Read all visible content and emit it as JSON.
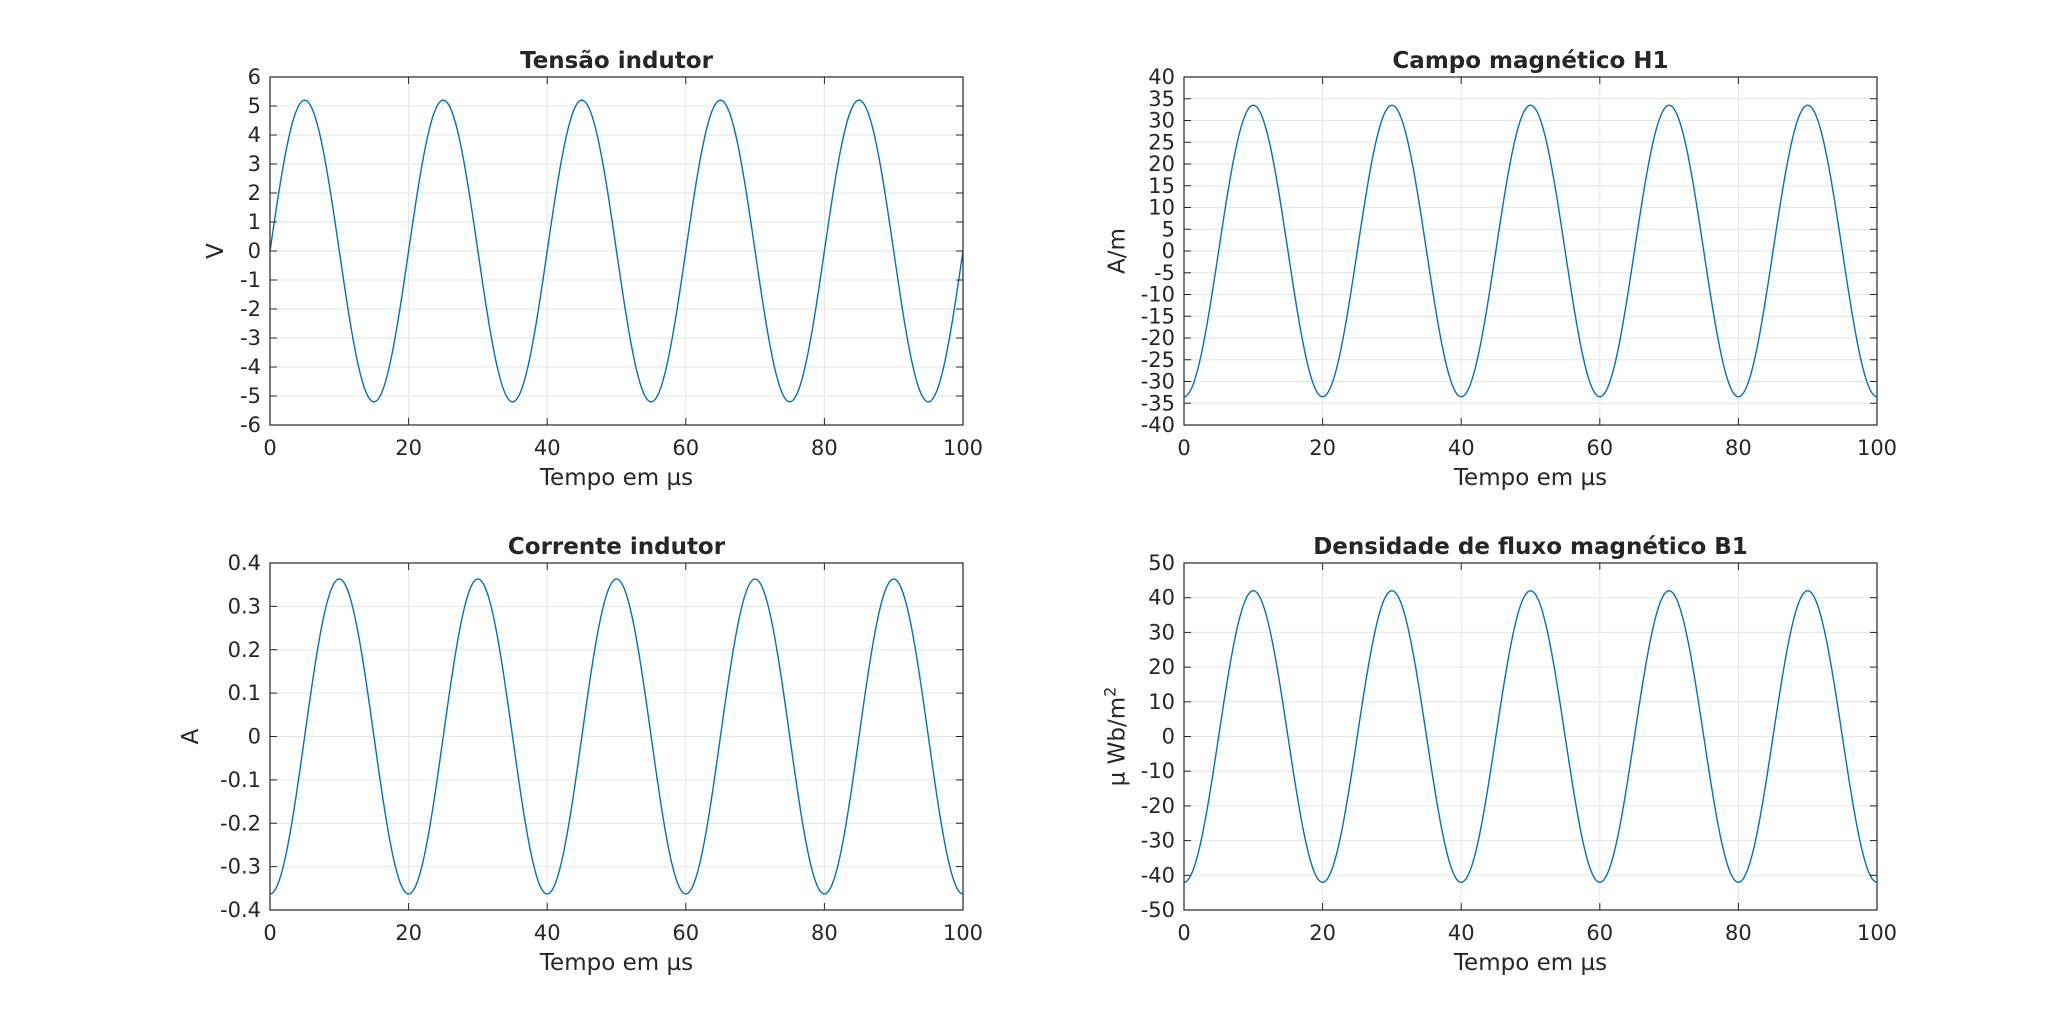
{
  "chart_data": [
    {
      "id": "tensao",
      "type": "line",
      "title": "Tensão indutor",
      "xlabel": "Tempo em µs",
      "ylabel": "V",
      "xlim": [
        0,
        100
      ],
      "ylim": [
        -6,
        6
      ],
      "xticks": [
        0,
        20,
        40,
        60,
        80,
        100
      ],
      "yticks": [
        -6,
        -5,
        -4,
        -3,
        -2,
        -1,
        0,
        1,
        2,
        3,
        4,
        5,
        6
      ],
      "grid": true,
      "series": [
        {
          "function": "sine",
          "amplitude": 5.2,
          "period": 20,
          "phase_deg": 0,
          "color": "#0072bd"
        }
      ]
    },
    {
      "id": "campo",
      "type": "line",
      "title": "Campo magnético H1",
      "xlabel": "Tempo em µs",
      "ylabel": "A/m",
      "xlim": [
        0,
        100
      ],
      "ylim": [
        -40,
        40
      ],
      "xticks": [
        0,
        20,
        40,
        60,
        80,
        100
      ],
      "yticks": [
        -40,
        -35,
        -30,
        -25,
        -20,
        -15,
        -10,
        -5,
        0,
        5,
        10,
        15,
        20,
        25,
        30,
        35,
        40
      ],
      "grid": true,
      "series": [
        {
          "function": "sine",
          "amplitude": 33.5,
          "period": 20,
          "phase_deg": -90,
          "color": "#0072bd"
        }
      ]
    },
    {
      "id": "corrente",
      "type": "line",
      "title": "Corrente indutor",
      "xlabel": "Tempo em µs",
      "ylabel": "A",
      "xlim": [
        0,
        100
      ],
      "ylim": [
        -0.4,
        0.4
      ],
      "xticks": [
        0,
        20,
        40,
        60,
        80,
        100
      ],
      "yticks": [
        -0.4,
        -0.3,
        -0.2,
        -0.1,
        0,
        0.1,
        0.2,
        0.3,
        0.4
      ],
      "grid": true,
      "series": [
        {
          "function": "sine",
          "amplitude": 0.363,
          "period": 20,
          "phase_deg": -90,
          "color": "#0072bd"
        }
      ]
    },
    {
      "id": "densidade",
      "type": "line",
      "title": "Densidade de fluxo magnético B1",
      "xlabel": "Tempo em µs",
      "ylabel": "µ Wb/m",
      "ylabel_superscript": "2",
      "xlim": [
        0,
        100
      ],
      "ylim": [
        -50,
        50
      ],
      "xticks": [
        0,
        20,
        40,
        60,
        80,
        100
      ],
      "yticks": [
        -50,
        -40,
        -30,
        -20,
        -10,
        0,
        10,
        20,
        30,
        40,
        50
      ],
      "grid": true,
      "series": [
        {
          "function": "sine",
          "amplitude": 42,
          "period": 20,
          "phase_deg": -90,
          "color": "#0072bd"
        }
      ]
    }
  ]
}
